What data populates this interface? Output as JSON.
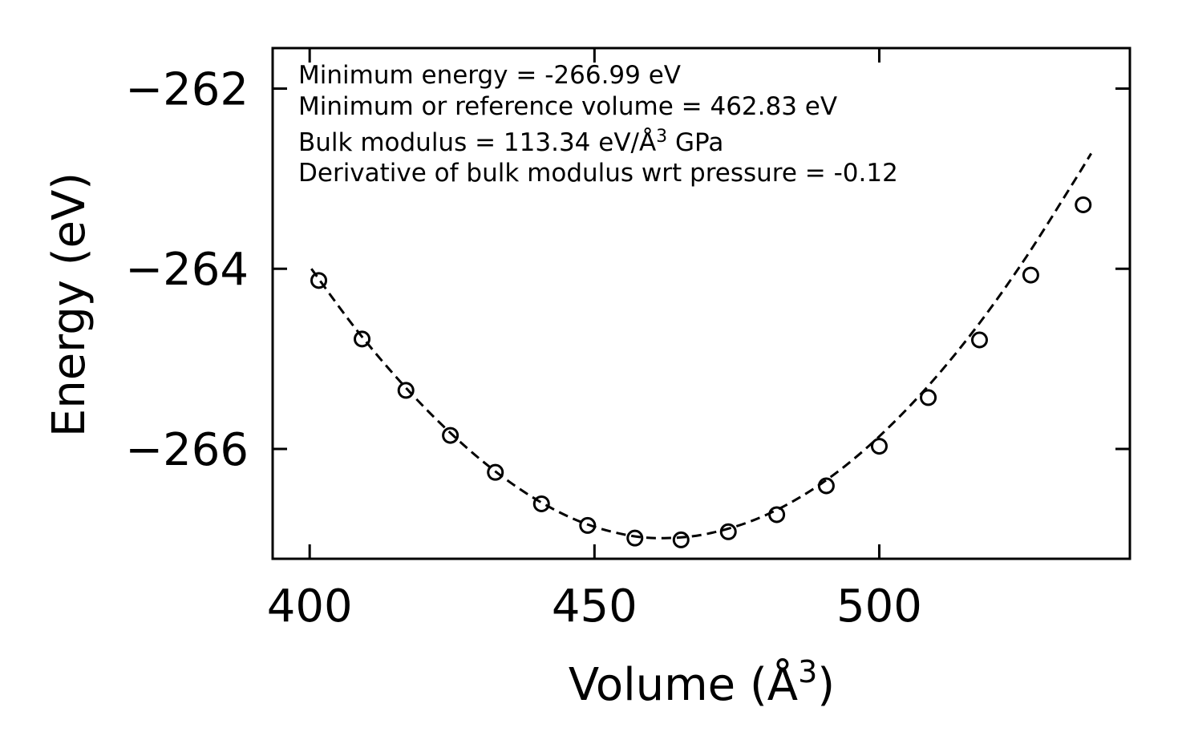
{
  "chart_data": {
    "type": "scatter",
    "xlabel_main": "Volume (Å",
    "xlabel_sup": "3",
    "xlabel_tail": ")",
    "ylabel": "Energy (eV)",
    "xlim": [
      393.5,
      544.0
    ],
    "ylim": [
      -267.22,
      -261.55
    ],
    "xticks": [
      400,
      450,
      500
    ],
    "xtick_labels": [
      "400",
      "450",
      "500"
    ],
    "yticks": [
      -262,
      -264,
      -266
    ],
    "ytick_labels": [
      "−262",
      "−264",
      "−266"
    ],
    "annotations": {
      "min_energy": "Minimum energy = -266.99 eV",
      "min_volume": "Minimum or reference volume = 462.83 eV",
      "bulk_modulus_main": "Bulk modulus = 113.34 eV/Å",
      "bulk_modulus_sup": "3",
      "bulk_modulus_tail": " GPa",
      "derivative": "Derivative of bulk modulus wrt pressure = -0.12"
    },
    "series": [
      {
        "name": "data points",
        "marker": "open-circle",
        "x": [
          401.6,
          409.2,
          416.9,
          424.7,
          432.6,
          440.7,
          448.8,
          457.1,
          465.2,
          473.5,
          482.0,
          490.7,
          500.0,
          508.6,
          517.6,
          526.6,
          535.8
        ],
        "y": [
          -264.13,
          -264.78,
          -265.35,
          -265.85,
          -266.26,
          -266.61,
          -266.85,
          -266.99,
          -267.01,
          -266.92,
          -266.73,
          -266.41,
          -265.97,
          -265.43,
          -264.79,
          -264.07,
          -263.29
        ]
      },
      {
        "name": "fit",
        "style": "dashed",
        "x": [
          400.3,
          408,
          416,
          424,
          432,
          440,
          448,
          456,
          462.83,
          470,
          478,
          486,
          494,
          502,
          510,
          518,
          526,
          534,
          537.2
        ],
        "y": [
          -264.0,
          -264.66,
          -265.26,
          -265.78,
          -266.22,
          -266.57,
          -266.82,
          -266.96,
          -266.99,
          -266.94,
          -266.79,
          -266.54,
          -266.19,
          -265.74,
          -265.2,
          -264.57,
          -263.85,
          -263.05,
          -262.72
        ]
      }
    ]
  }
}
